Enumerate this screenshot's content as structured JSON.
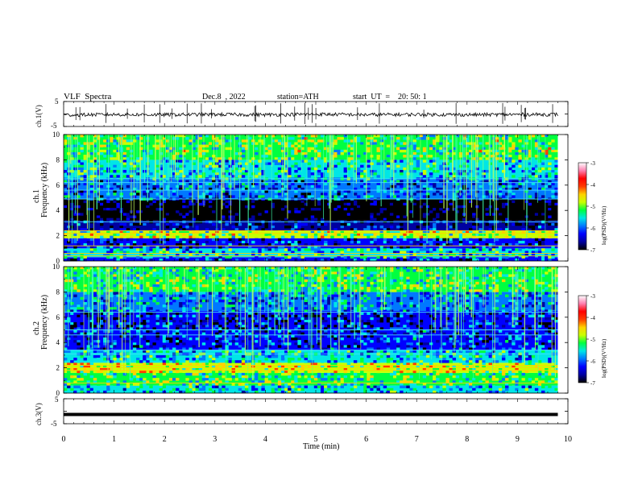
{
  "header": {
    "title": "VLF  Spectra",
    "date": "Dec.8  , 2022",
    "station": "station=ATH",
    "start_ut": "start  UT  =    20: 50: 1"
  },
  "panels": {
    "ch1_label": "ch.1(V)",
    "ch1_ticks": [
      "5",
      "-5"
    ],
    "ch3_label": "ch.3(V)",
    "ch3_ticks": [
      "5",
      "-5"
    ],
    "spec1_label_ch": "ch.1",
    "spec1_label_freq": "Frequency (kHz)",
    "spec2_label_ch": "ch.2",
    "spec2_label_freq": "Frequency (kHz)",
    "freq_ticks": [
      "0",
      "2",
      "4",
      "6",
      "8",
      "10"
    ]
  },
  "colorbar": {
    "label": "log(PSD)(V²/Hz)",
    "ticks": [
      "-3",
      "-4",
      "-5",
      "-6",
      "-7"
    ],
    "colors": [
      "#000000",
      "#0000a0",
      "#0000ff",
      "#0078ff",
      "#00e6e6",
      "#00ff40",
      "#c8ff00",
      "#ffd200",
      "#ff3c00",
      "#ff0000",
      "#ff80b0",
      "#ffffff"
    ]
  },
  "chart_data": [
    {
      "type": "line",
      "title": "ch.1(V)",
      "ylabel": "ch.1(V)",
      "xlim": [
        0,
        10
      ],
      "ylim": [
        -5,
        5
      ],
      "description_series": {
        "name": "ch.1",
        "x": [
          0,
          1,
          2,
          3,
          4,
          5,
          6,
          7,
          8,
          9,
          9.8
        ],
        "values": [
          -0.4,
          -0.2,
          -0.3,
          -0.2,
          -0.3,
          -0.1,
          -0.3,
          -0.2,
          -0.3,
          -0.2,
          -0.2
        ]
      }
    },
    {
      "type": "heatmap",
      "title": "ch.1 spectrogram",
      "ylabel": "Frequency (kHz)",
      "xlim": [
        0,
        10
      ],
      "ylim": [
        0,
        10
      ],
      "data_end_min": 9.8,
      "colorbar_range": [
        -7,
        -3
      ],
      "bands_khz": [
        {
          "from": 0.0,
          "to": 0.3,
          "level": -6.2
        },
        {
          "from": 0.3,
          "to": 1.0,
          "level": -5.6
        },
        {
          "from": 1.0,
          "to": 1.8,
          "level": -6.2
        },
        {
          "from": 1.8,
          "to": 2.4,
          "level": -5.0
        },
        {
          "from": 2.4,
          "to": 3.2,
          "level": -6.4
        },
        {
          "from": 3.2,
          "to": 4.9,
          "level": -6.9
        },
        {
          "from": 4.9,
          "to": 6.5,
          "level": -6.0
        },
        {
          "from": 6.5,
          "to": 8.0,
          "level": -5.6
        },
        {
          "from": 8.0,
          "to": 10.0,
          "level": -5.1
        }
      ],
      "lines_khz": [
        0.4,
        0.6,
        1.2,
        2.2,
        2.4,
        3.1,
        4.9,
        5.6,
        6.2,
        6.5
      ]
    },
    {
      "type": "heatmap",
      "title": "ch.2 spectrogram",
      "ylabel": "Frequency (kHz)",
      "xlim": [
        0,
        10
      ],
      "ylim": [
        0,
        10
      ],
      "data_end_min": 9.8,
      "colorbar_range": [
        -7,
        -3
      ],
      "bands_khz": [
        {
          "from": 0.0,
          "to": 0.6,
          "level": -5.6
        },
        {
          "from": 0.6,
          "to": 1.6,
          "level": -5.2
        },
        {
          "from": 1.6,
          "to": 2.4,
          "level": -4.8
        },
        {
          "from": 2.4,
          "to": 3.4,
          "level": -5.6
        },
        {
          "from": 3.4,
          "to": 5.0,
          "level": -6.1
        },
        {
          "from": 5.0,
          "to": 6.5,
          "level": -6.3
        },
        {
          "from": 6.5,
          "to": 8.0,
          "level": -5.8
        },
        {
          "from": 8.0,
          "to": 10.0,
          "level": -5.2
        }
      ],
      "lines_khz": [
        0.8,
        1.8,
        2.0,
        2.2,
        3.1,
        3.4,
        4.6,
        5.0,
        6.4
      ]
    },
    {
      "type": "line",
      "title": "ch.3(V)",
      "ylabel": "ch.3(V)",
      "xlabel": "Time  (min)",
      "xlim": [
        0,
        10
      ],
      "ylim": [
        -5,
        5
      ],
      "x_ticks": [
        "0",
        "1",
        "2",
        "3",
        "4",
        "5",
        "6",
        "7",
        "8",
        "9",
        "10"
      ],
      "description_series": {
        "name": "ch.3",
        "x": [
          0,
          9.8
        ],
        "values": [
          -1.3,
          -1.3
        ]
      }
    }
  ]
}
